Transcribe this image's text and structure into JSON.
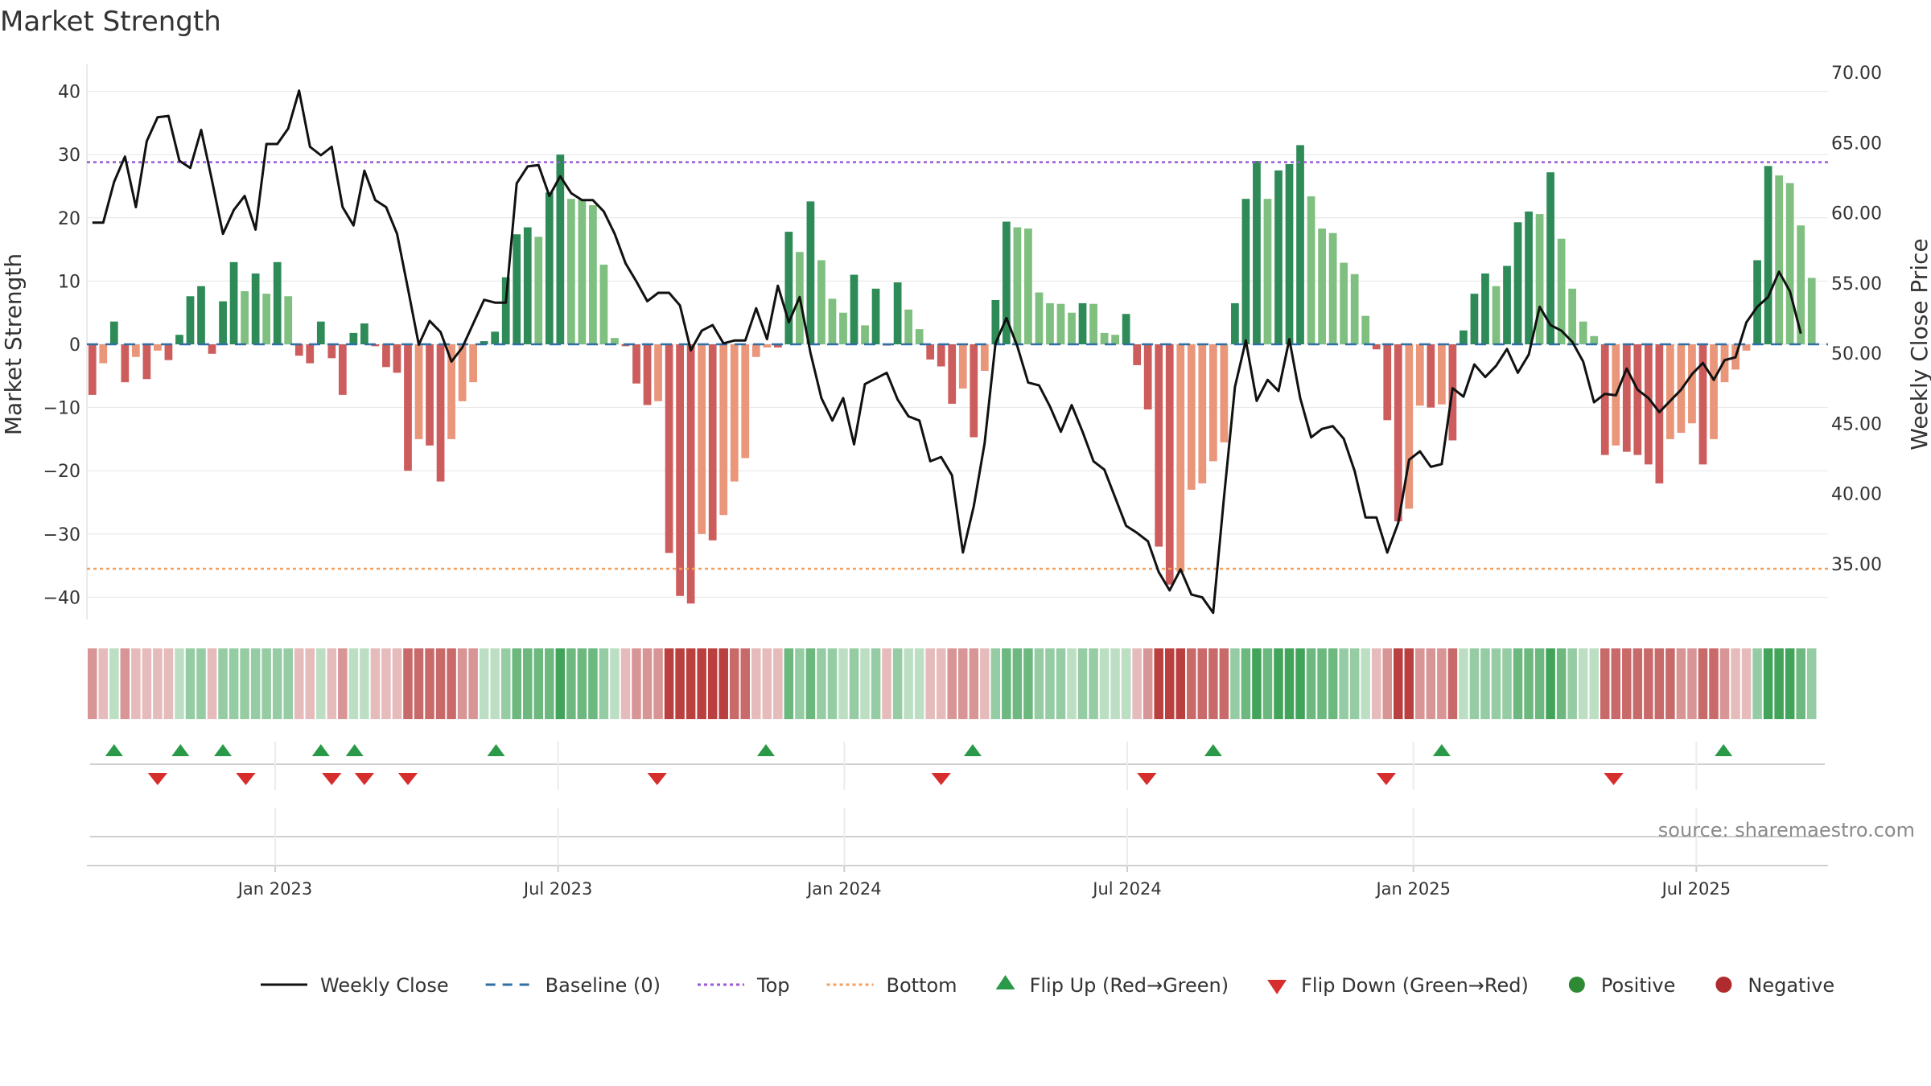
{
  "title": "Market Strength",
  "source": "source: sharemaestro.com",
  "chart_data": {
    "type": "bar",
    "title": "Market Strength",
    "ylabel": "Market Strength",
    "y2label": "Weekly Close Price",
    "ylim": [
      -44,
      41
    ],
    "y2lim": [
      32.0,
      70.0
    ],
    "yticks": [
      40,
      30,
      20,
      10,
      0,
      -10,
      -20,
      -30,
      -40
    ],
    "yticklabels": [
      "40",
      "30",
      "20",
      "10",
      "0",
      "−10",
      "−20",
      "−30",
      "−40"
    ],
    "y2ticks": [
      70,
      65,
      60,
      55,
      50,
      45,
      40,
      35
    ],
    "y2ticklabels": [
      "70.00",
      "65.00",
      "60.00",
      "55.00",
      "50.00",
      "45.00",
      "40.00",
      "35.00"
    ],
    "top_line": 28.8,
    "bottom_line": -35.5,
    "baseline": 0,
    "x_start": "2022-09-05",
    "n_weeks": 160,
    "date_ticks": [
      {
        "label": "Jan 2023",
        "week": 17.3
      },
      {
        "label": "Jul 2023",
        "week": 43.3
      },
      {
        "label": "Jan 2024",
        "week": 69.6
      },
      {
        "label": "Jul 2024",
        "week": 95.6
      },
      {
        "label": "Jan 2025",
        "week": 121.9
      },
      {
        "label": "Jul 2025",
        "week": 147.9
      }
    ],
    "strength": [
      -8,
      -3,
      3.6,
      -6,
      -2,
      -5.5,
      -1,
      -2.5,
      1.5,
      7.6,
      9.2,
      -1.5,
      6.8,
      13,
      8.4,
      11.2,
      8,
      13,
      7.6,
      -1.8,
      -3,
      3.6,
      -2.2,
      -8,
      1.8,
      3.3,
      -0.3,
      -3.6,
      -4.5,
      -20,
      -15,
      -16,
      -21.7,
      -15,
      -9,
      -6,
      0.5,
      2,
      10.6,
      17.4,
      18.5,
      17,
      24,
      30,
      23,
      22.9,
      22,
      12.6,
      1,
      -0.3,
      -6.2,
      -9.6,
      -9,
      -33,
      -39.8,
      -41,
      -30,
      -31,
      -27,
      -21.7,
      -18,
      -2,
      -0.5,
      -0.5,
      17.8,
      14.6,
      22.6,
      13.3,
      7.2,
      5,
      11,
      3,
      8.8,
      -0.2,
      9.8,
      5.5,
      2.4,
      -2.4,
      -3.5,
      -9.4,
      -7,
      -14.7,
      -4.2,
      7,
      19.4,
      18.5,
      18.3,
      8.2,
      6.5,
      6.4,
      5,
      6.5,
      6.4,
      1.8,
      1.5,
      4.8,
      -3.3,
      -10.3,
      -32,
      -38,
      -36,
      -23,
      -22,
      -18.5,
      -15.5,
      6.5,
      23,
      29,
      23,
      27.5,
      28.5,
      31.5,
      23.4,
      18.3,
      17.6,
      12.9,
      11.1,
      4.5,
      -0.8,
      -12,
      -28,
      -26,
      -9.7,
      -10,
      -9.5,
      -15.2,
      2.2,
      8,
      11.2,
      9.2,
      12.4,
      19.3,
      21,
      20.6,
      27.2,
      16.7,
      8.8,
      3.6,
      1.3,
      -17.5,
      -16,
      -17,
      -17.5,
      -19,
      -22,
      -15,
      -14,
      -12.5,
      -19,
      -15,
      -6,
      -4,
      -1,
      13.3,
      28.2,
      26.7,
      25.5,
      18.8,
      10.5
    ],
    "close": [
      59.3,
      59.3,
      62.2,
      64,
      60.4,
      65.1,
      66.8,
      66.9,
      63.7,
      63.2,
      65.9,
      62.3,
      58.5,
      60.2,
      61.2,
      58.8,
      64.9,
      64.9,
      66,
      68.7,
      64.7,
      64.1,
      64.7,
      60.4,
      59.1,
      63,
      60.9,
      60.4,
      58.5,
      54.6,
      50.6,
      52.3,
      51.5,
      49.4,
      50.4,
      52.1,
      53.8,
      53.6,
      53.6,
      62.1,
      63.3,
      63.4,
      61.2,
      62.6,
      61.4,
      60.9,
      60.9,
      60.1,
      58.5,
      56.4,
      55.1,
      53.7,
      54.3,
      54.3,
      53.4,
      50.2,
      51.6,
      52,
      50.7,
      50.9,
      50.9,
      53.2,
      51,
      54.8,
      52.2,
      54,
      50,
      46.8,
      45.2,
      46.8,
      43.5,
      47.8,
      48.2,
      48.6,
      46.7,
      45.5,
      45.2,
      42.3,
      42.6,
      41.3,
      35.8,
      39.1,
      43.6,
      50.7,
      52.5,
      50.5,
      47.9,
      47.7,
      46.2,
      44.4,
      46.3,
      44.4,
      42.3,
      41.7,
      39.7,
      37.7,
      37.2,
      36.6,
      34.4,
      33.1,
      34.6,
      32.8,
      32.6,
      31.5,
      39.8,
      47.6,
      50.9,
      46.6,
      48.1,
      47.3,
      51,
      46.8,
      44,
      44.6,
      44.8,
      43.9,
      41.6,
      38.3,
      38.3,
      35.8,
      37.9,
      42.4,
      43,
      41.9,
      42.1,
      47.5,
      46.9,
      49.2,
      48.3,
      49.1,
      50.3,
      48.6,
      49.9,
      53.3,
      52,
      51.6,
      50.8,
      49.4,
      46.5,
      47.1,
      47,
      48.9,
      47.4,
      46.8,
      45.8,
      46.6,
      47.4,
      48.5,
      49.3,
      48.1,
      49.5,
      49.7,
      52.2,
      53.3,
      54,
      55.8,
      54.4,
      51.4
    ],
    "flip_up": [
      2.5,
      8.6,
      12.5,
      21.5,
      24.6,
      37.6,
      62.4,
      81.4,
      103.5,
      124.5,
      150.4
    ],
    "flip_down": [
      6.5,
      14.6,
      22.5,
      25.5,
      29.5,
      52.4,
      78.5,
      97.4,
      119.4,
      140.3
    ],
    "legend": [
      {
        "label": "Weekly Close",
        "kind": "line",
        "color": "#111111"
      },
      {
        "label": "Baseline (0)",
        "kind": "dash",
        "color": "#2f6fa4"
      },
      {
        "label": "Top",
        "kind": "dot",
        "color": "#9b59d6"
      },
      {
        "label": "Bottom",
        "kind": "dot",
        "color": "#f0a060"
      },
      {
        "label": "Flip Up (Red→Green)",
        "kind": "triup",
        "color": "#2a9a48"
      },
      {
        "label": "Flip Down (Green→Red)",
        "kind": "tridown",
        "color": "#d62d2d"
      },
      {
        "label": "Positive",
        "kind": "circle",
        "color": "#2e8b34"
      },
      {
        "label": "Negative",
        "kind": "circle",
        "color": "#b02b2e"
      }
    ]
  },
  "colors": {
    "pos_strong": "#2e8b57",
    "pos_weak": "#7fbf7f",
    "neg_strong": "#cd5c5c",
    "neg_weak": "#e9967a",
    "close_line": "#111111",
    "baseline": "#2f6fa4",
    "top": "#9b59d6",
    "bottom": "#f0a060",
    "grid": "#e6e6e6"
  }
}
